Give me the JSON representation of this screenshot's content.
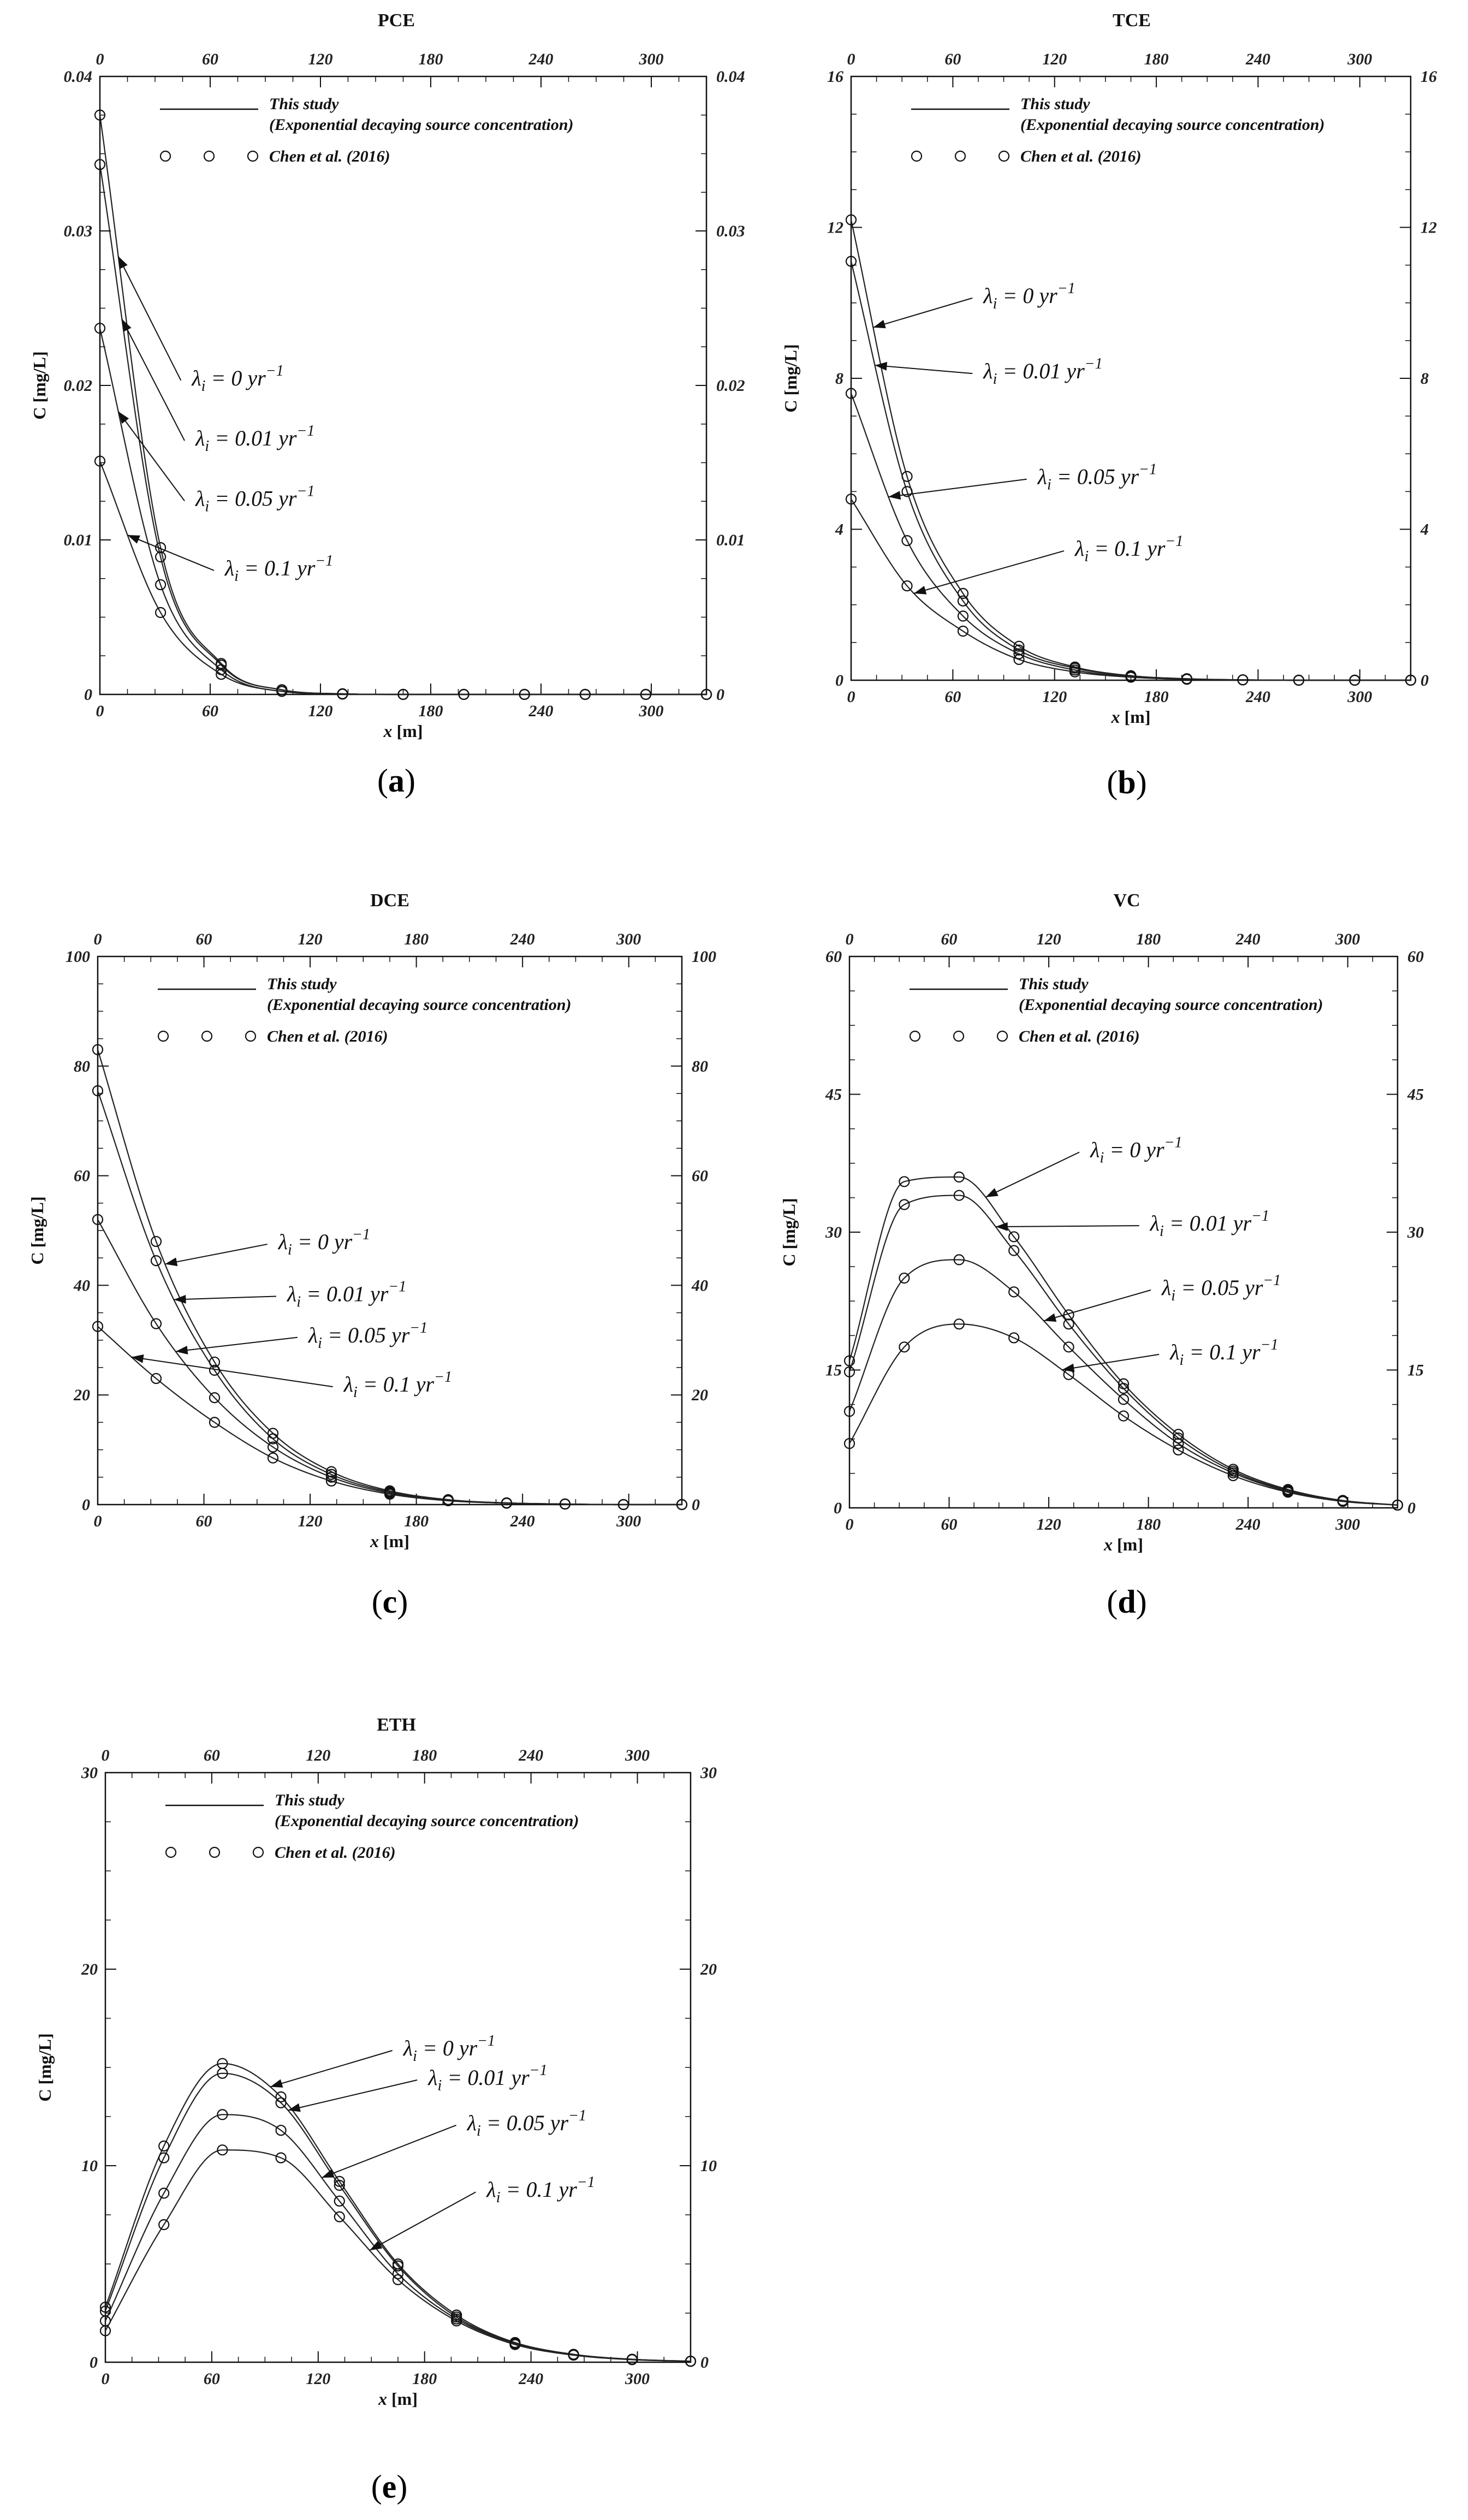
{
  "figure": {
    "captions": [
      "(a)",
      "(b)",
      "(c)",
      "(d)",
      "(e)"
    ]
  },
  "chart_data": [
    {
      "id": "a",
      "type": "line",
      "title": "PCE",
      "xlabel": "x [m]",
      "ylabel": "C [mg/L]",
      "xlim": [
        0,
        330
      ],
      "ylim": [
        0,
        0.04
      ],
      "xticks": [
        "0",
        "60",
        "120",
        "180",
        "240",
        "300"
      ],
      "xtick_values": [
        0,
        60,
        120,
        180,
        240,
        300
      ],
      "yticks": [
        "0",
        "0.01",
        "0.02",
        "0.03",
        "0.04"
      ],
      "ytick_values": [
        0,
        0.01,
        0.02,
        0.03,
        0.04
      ],
      "legend": {
        "line": "This study",
        "line_sub": "(Exponential decaying source concentration)",
        "markers": "Chen et al. (2016)"
      },
      "x": [
        0,
        33,
        66,
        99,
        132,
        165,
        198,
        231,
        264,
        297,
        330
      ],
      "series": [
        {
          "name": "λi = 0 yr−1",
          "values": [
            0.0375,
            0.0095,
            0.002,
            0.0003,
            4e-05,
            0,
            0,
            0,
            0,
            0,
            0
          ]
        },
        {
          "name": "λi = 0.01 yr−1",
          "values": [
            0.0343,
            0.0089,
            0.0019,
            0.0003,
            4e-05,
            0,
            0,
            0,
            0,
            0,
            0
          ]
        },
        {
          "name": "λi = 0.05 yr−1",
          "values": [
            0.0237,
            0.0071,
            0.0016,
            0.0002,
            3e-05,
            0,
            0,
            0,
            0,
            0,
            0
          ]
        },
        {
          "name": "λi = 0.1 yr−1",
          "values": [
            0.0151,
            0.0053,
            0.0013,
            0.0002,
            2e-05,
            0,
            0,
            0,
            0,
            0,
            0
          ]
        }
      ],
      "annotations": [
        {
          "text": "λi = 0 yr−1",
          "x": 50,
          "y": 0.0205,
          "series": 0,
          "tx": 10,
          "ty": 0.0193
        },
        {
          "text": "λi = 0.01 yr−1",
          "x": 52,
          "y": 0.0166,
          "series": 1,
          "tx": 12,
          "ty": 0.0157
        },
        {
          "text": "λi = 0.05 yr−1",
          "x": 52,
          "y": 0.0127,
          "series": 2,
          "tx": 10,
          "ty": 0.0125
        },
        {
          "text": "λi = 0.1 yr−1",
          "x": 68,
          "y": 0.0082,
          "series": 3,
          "tx": 15,
          "ty": 0.0072
        }
      ],
      "legend_pos": "top-left"
    },
    {
      "id": "b",
      "type": "line",
      "title": "TCE",
      "xlabel": "x [m]",
      "ylabel": "C [mg/L]",
      "xlim": [
        0,
        330
      ],
      "ylim": [
        0,
        16
      ],
      "xticks": [
        "0",
        "60",
        "120",
        "180",
        "240",
        "300"
      ],
      "xtick_values": [
        0,
        60,
        120,
        180,
        240,
        300
      ],
      "yticks": [
        "0",
        "4",
        "8",
        "12",
        "16"
      ],
      "ytick_values": [
        0,
        4,
        8,
        12,
        16
      ],
      "legend": {
        "line": "This study",
        "line_sub": "(Exponential decaying source concentration)",
        "markers": "Chen et al. (2016)"
      },
      "x": [
        0,
        33,
        66,
        99,
        132,
        165,
        198,
        231,
        264,
        297,
        330
      ],
      "series": [
        {
          "name": "λi = 0 yr−1",
          "values": [
            12.2,
            5.4,
            2.3,
            0.9,
            0.35,
            0.12,
            0.04,
            0.01,
            0,
            0,
            0
          ]
        },
        {
          "name": "λi = 0.01 yr−1",
          "values": [
            11.1,
            5.0,
            2.1,
            0.8,
            0.32,
            0.11,
            0.035,
            0.01,
            0,
            0,
            0
          ]
        },
        {
          "name": "λi = 0.05 yr−1",
          "values": [
            7.6,
            3.7,
            1.7,
            0.7,
            0.27,
            0.09,
            0.03,
            0.01,
            0,
            0,
            0
          ]
        },
        {
          "name": "λi = 0.1 yr−1",
          "values": [
            4.8,
            2.5,
            1.3,
            0.55,
            0.22,
            0.08,
            0.025,
            0.01,
            0,
            0,
            0
          ]
        }
      ],
      "annotations": [
        {
          "text": "λi = 0 yr−1",
          "x": 78,
          "y": 10.2,
          "series": 0,
          "tx": 13,
          "ty": 9.5
        },
        {
          "text": "λi = 0.01 yr−1",
          "x": 78,
          "y": 8.2,
          "series": 1,
          "tx": 14,
          "ty": 7.9
        },
        {
          "text": "λi = 0.05 yr−1",
          "x": 110,
          "y": 5.4,
          "series": 2,
          "tx": 22,
          "ty": 4.9
        },
        {
          "text": "λi = 0.1 yr−1",
          "x": 132,
          "y": 3.5,
          "series": 3,
          "tx": 37,
          "ty": 2.5
        }
      ],
      "legend_pos": "top-left"
    },
    {
      "id": "c",
      "type": "line",
      "title": "DCE",
      "xlabel": "x [m]",
      "ylabel": "C [mg/L]",
      "xlim": [
        0,
        330
      ],
      "ylim": [
        0,
        100
      ],
      "xticks": [
        "0",
        "60",
        "120",
        "180",
        "240",
        "300"
      ],
      "xtick_values": [
        0,
        60,
        120,
        180,
        240,
        300
      ],
      "yticks": [
        "0",
        "20",
        "40",
        "60",
        "80",
        "100"
      ],
      "ytick_values": [
        0,
        20,
        40,
        60,
        80,
        100
      ],
      "legend": {
        "line": "This study",
        "line_sub": "(Exponential decaying source concentration)",
        "markers": "Chen et al. (2016)"
      },
      "x": [
        0,
        33,
        66,
        99,
        132,
        165,
        198,
        231,
        264,
        297,
        330
      ],
      "series": [
        {
          "name": "λi = 0 yr−1",
          "values": [
            83.0,
            48.0,
            26.0,
            13.0,
            6.0,
            2.5,
            0.9,
            0.3,
            0.1,
            0,
            0
          ]
        },
        {
          "name": "λi = 0.01 yr−1",
          "values": [
            75.5,
            44.5,
            24.5,
            12.0,
            5.5,
            2.3,
            0.8,
            0.3,
            0.1,
            0,
            0
          ]
        },
        {
          "name": "λi = 0.05 yr−1",
          "values": [
            52.0,
            33.0,
            19.5,
            10.5,
            5.0,
            2.1,
            0.8,
            0.3,
            0.1,
            0,
            0
          ]
        },
        {
          "name": "λi = 0.1 yr−1",
          "values": [
            32.5,
            23.0,
            15.0,
            8.5,
            4.3,
            1.9,
            0.7,
            0.25,
            0.1,
            0,
            0
          ]
        }
      ],
      "annotations": [
        {
          "text": "λi = 0 yr−1",
          "x": 102,
          "y": 48,
          "series": 0,
          "tx": 38,
          "ty": 45.5
        },
        {
          "text": "λi = 0.01 yr−1",
          "x": 107,
          "y": 38.5,
          "series": 1,
          "tx": 43,
          "ty": 37
        },
        {
          "text": "λi = 0.05 yr−1",
          "x": 119,
          "y": 31,
          "series": 2,
          "tx": 44,
          "ty": 28.5
        },
        {
          "text": "λi = 0.1 yr−1",
          "x": 139,
          "y": 22,
          "series": 3,
          "tx": 19,
          "ty": 19.5
        }
      ],
      "legend_pos": "top-left"
    },
    {
      "id": "d",
      "type": "line",
      "title": "VC",
      "xlabel": "x [m]",
      "ylabel": "C [mg/L]",
      "xlim": [
        0,
        330
      ],
      "ylim": [
        0,
        60
      ],
      "xticks": [
        "0",
        "60",
        "120",
        "180",
        "240",
        "300"
      ],
      "xtick_values": [
        0,
        60,
        120,
        180,
        240,
        300
      ],
      "yticks": [
        "0",
        "15",
        "30",
        "45",
        "60"
      ],
      "ytick_values": [
        0,
        15,
        30,
        45,
        60
      ],
      "legend": {
        "line": "This study",
        "line_sub": "(Exponential decaying source concentration)",
        "markers": "Chen et al. (2016)"
      },
      "x": [
        0,
        33,
        66,
        99,
        132,
        165,
        198,
        231,
        264,
        297,
        330
      ],
      "series": [
        {
          "name": "λi = 0 yr−1",
          "values": [
            16.0,
            35.5,
            36.0,
            29.5,
            21.0,
            13.5,
            8.0,
            4.2,
            2.0,
            0.8,
            0.3
          ]
        },
        {
          "name": "λi = 0.01 yr−1",
          "values": [
            14.8,
            33.0,
            34.0,
            28.0,
            20.0,
            13.0,
            7.6,
            4.0,
            1.9,
            0.8,
            0.3
          ]
        },
        {
          "name": "λi = 0.05 yr−1",
          "values": [
            10.5,
            25.0,
            27.0,
            23.5,
            17.5,
            11.8,
            7.0,
            3.8,
            1.8,
            0.75,
            0.3
          ]
        },
        {
          "name": "λi = 0.1 yr−1",
          "values": [
            7.0,
            17.5,
            20.0,
            18.5,
            14.5,
            10.0,
            6.3,
            3.5,
            1.7,
            0.7,
            0.3
          ]
        }
      ],
      "annotations": [
        {
          "text": "λi = 0 yr−1",
          "x": 145,
          "y": 39,
          "series": 0,
          "tx": 82,
          "ty": 36
        },
        {
          "text": "λi = 0.01 yr−1",
          "x": 181,
          "y": 31,
          "series": 1,
          "tx": 88,
          "ty": 29.5
        },
        {
          "text": "λi = 0.05 yr−1",
          "x": 188,
          "y": 24,
          "series": 2,
          "tx": 117,
          "ty": 22
        },
        {
          "text": "λi = 0.1 yr−1",
          "x": 193,
          "y": 17,
          "series": 3,
          "tx": 128,
          "ty": 15.2
        }
      ],
      "legend_pos": "top-left"
    },
    {
      "id": "e",
      "type": "line",
      "title": "ETH",
      "xlabel": "x [m]",
      "ylabel": "C [mg/L]",
      "xlim": [
        0,
        330
      ],
      "ylim": [
        0,
        30
      ],
      "xticks": [
        "0",
        "60",
        "120",
        "180",
        "240",
        "300"
      ],
      "xtick_values": [
        0,
        60,
        120,
        180,
        240,
        300
      ],
      "yticks": [
        "0",
        "10",
        "20",
        "30"
      ],
      "ytick_values": [
        0,
        10,
        20,
        30
      ],
      "legend": {
        "line": "This study",
        "line_sub": "(Exponential decaying source concentration)",
        "markers": "Chen et al. (2016)"
      },
      "x": [
        0,
        33,
        66,
        99,
        132,
        165,
        198,
        231,
        264,
        297,
        330
      ],
      "series": [
        {
          "name": "λi = 0 yr−1",
          "values": [
            2.8,
            11.0,
            15.2,
            13.5,
            9.2,
            5.0,
            2.4,
            1.0,
            0.4,
            0.15,
            0.05
          ]
        },
        {
          "name": "λi = 0.01 yr−1",
          "values": [
            2.6,
            10.4,
            14.7,
            13.2,
            9.0,
            4.9,
            2.3,
            1.0,
            0.4,
            0.15,
            0.05
          ]
        },
        {
          "name": "λi = 0.05 yr−1",
          "values": [
            2.1,
            8.6,
            12.6,
            11.8,
            8.2,
            4.5,
            2.2,
            0.95,
            0.38,
            0.14,
            0.05
          ]
        },
        {
          "name": "λi = 0.1 yr−1",
          "values": [
            1.6,
            7.0,
            10.8,
            10.4,
            7.4,
            4.2,
            2.1,
            0.9,
            0.36,
            0.13,
            0.05
          ]
        }
      ],
      "annotations": [
        {
          "text": "λi = 0 yr−1",
          "x": 168,
          "y": 16,
          "series": 0,
          "tx": 93,
          "ty": 14.8
        },
        {
          "text": "λi = 0.01 yr−1",
          "x": 182,
          "y": 14.5,
          "series": 1,
          "tx": 103,
          "ty": 12.7
        },
        {
          "text": "λi = 0.05 yr−1",
          "x": 204,
          "y": 12.2,
          "series": 2,
          "tx": 122,
          "ty": 9.7
        },
        {
          "text": "λi = 0.1 yr−1",
          "x": 215,
          "y": 8.8,
          "series": 3,
          "tx": 149,
          "ty": 6.0
        }
      ],
      "legend_pos": "top-left"
    }
  ]
}
